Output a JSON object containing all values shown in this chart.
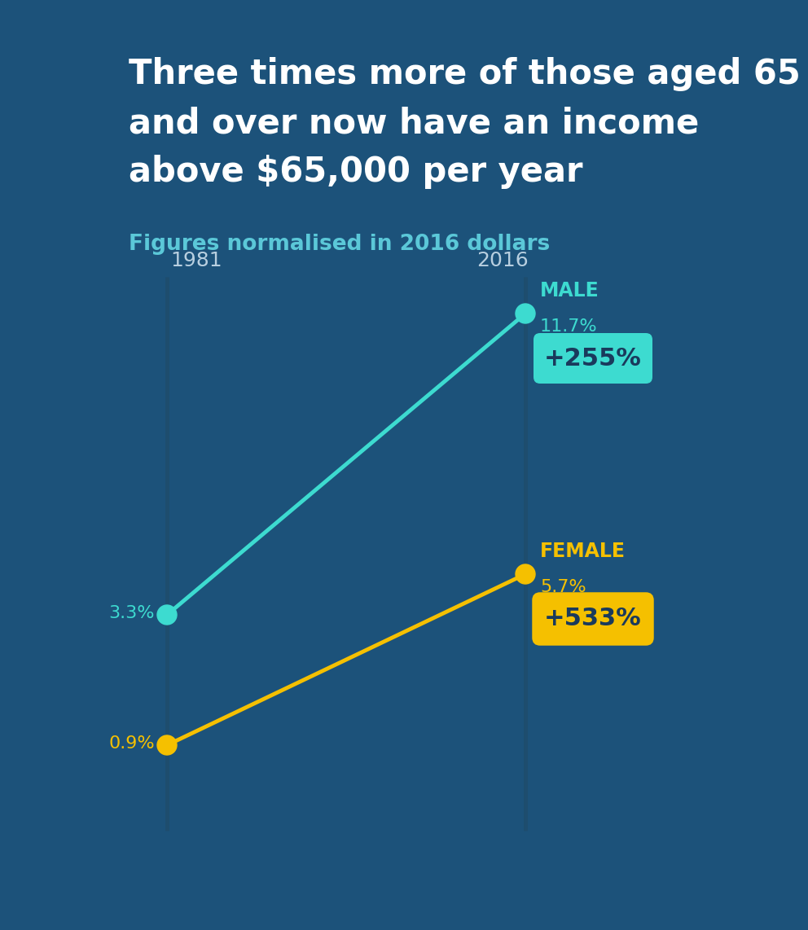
{
  "title_line1": "Three times more of those aged 65",
  "title_line2": "and over now have an income",
  "title_line3": "above $65,000 per year",
  "subtitle": "Figures normalised in 2016 dollars",
  "bg_color": "#1c527a",
  "male_color": "#3ddbd0",
  "female_color": "#f5c000",
  "male_1981": 3.3,
  "male_2016": 11.7,
  "female_1981": 0.9,
  "female_2016": 5.7,
  "male_change": "+255%",
  "female_change": "+533%",
  "year_1981_label": "1981",
  "year_2016_label": "2016",
  "axis_line_color": "#1e4d6e",
  "title_color": "#ffffff",
  "subtitle_color": "#5bc8d8",
  "male_badge_bg": "#3ddbd0",
  "female_badge_bg": "#f5c000",
  "badge_text_color": "#1a3a5c",
  "year_label_color": "#b8cfe0"
}
